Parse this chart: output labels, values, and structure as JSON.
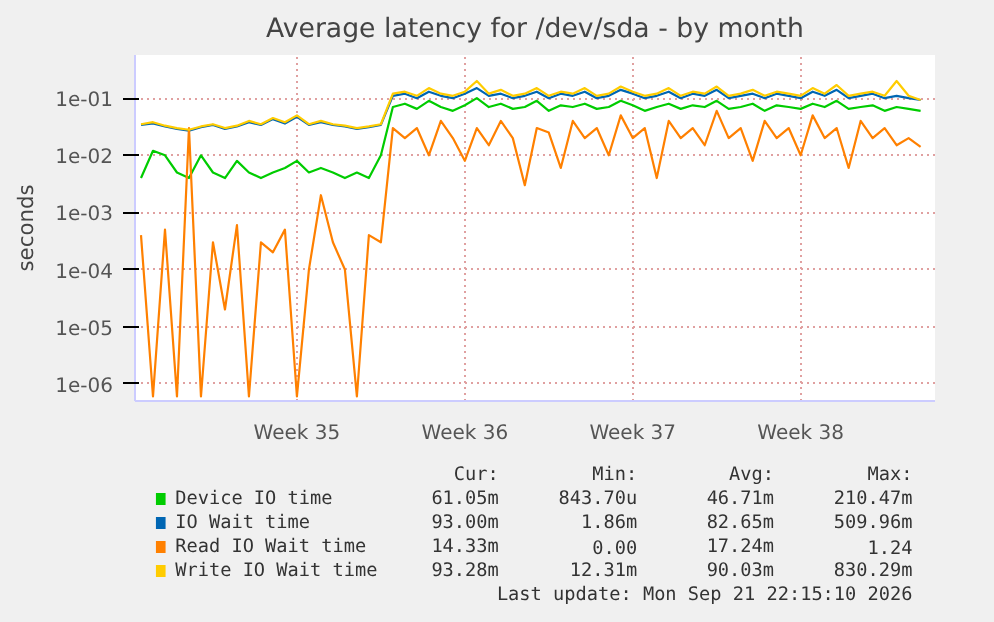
{
  "chart_data": {
    "type": "line",
    "title": "Average latency for /dev/sda - by month",
    "ylabel": "seconds",
    "log": true,
    "grid": true,
    "legend": "bottom",
    "categories": [
      null,
      null,
      null,
      null,
      null,
      null,
      null,
      null,
      null,
      null,
      null,
      null,
      null,
      "Week 35",
      null,
      null,
      null,
      null,
      null,
      null,
      null,
      null,
      null,
      null,
      null,
      null,
      null,
      "Week 36",
      null,
      null,
      null,
      null,
      null,
      null,
      null,
      null,
      null,
      null,
      null,
      null,
      null,
      "Week 37",
      null,
      null,
      null,
      null,
      null,
      null,
      null,
      null,
      null,
      null,
      null,
      null,
      null,
      "Week 38",
      null,
      null,
      null,
      null,
      null,
      null,
      null,
      null,
      null,
      null
    ],
    "ylim": [
      5e-07,
      0.57
    ],
    "yticks": [
      {
        "value": 1e-06,
        "label": "1e-06"
      },
      {
        "value": 1e-05,
        "label": "1e-05"
      },
      {
        "value": 0.0001,
        "label": "1e-04"
      },
      {
        "value": 0.001,
        "label": "1e-03"
      },
      {
        "value": 0.01,
        "label": "1e-02"
      },
      {
        "value": 0.1,
        "label": "1e-01"
      }
    ],
    "series": [
      {
        "name": "Device IO time",
        "color": "#00cc00",
        "values": [
          0.004,
          0.012,
          0.01,
          0.005,
          0.004,
          0.01,
          0.005,
          0.004,
          0.008,
          0.005,
          0.004,
          0.005,
          0.006,
          0.008,
          0.005,
          0.006,
          0.005,
          0.004,
          0.005,
          0.004,
          0.01,
          0.07,
          0.08,
          0.065,
          0.09,
          0.07,
          0.06,
          0.075,
          0.1,
          0.07,
          0.08,
          0.065,
          0.07,
          0.09,
          0.06,
          0.075,
          0.07,
          0.08,
          0.065,
          0.07,
          0.09,
          0.075,
          0.06,
          0.07,
          0.08,
          0.065,
          0.075,
          0.07,
          0.09,
          0.065,
          0.07,
          0.08,
          0.06,
          0.075,
          0.07,
          0.065,
          0.08,
          0.07,
          0.09,
          0.065,
          0.07,
          0.075,
          0.06,
          0.07,
          0.065,
          0.06
        ]
      },
      {
        "name": "IO Wait time",
        "color": "#0066b3",
        "values": [
          0.034,
          0.036,
          0.032,
          0.029,
          0.027,
          0.031,
          0.034,
          0.029,
          0.032,
          0.038,
          0.034,
          0.043,
          0.036,
          0.047,
          0.034,
          0.038,
          0.034,
          0.032,
          0.029,
          0.031,
          0.034,
          0.11,
          0.12,
          0.1,
          0.13,
          0.11,
          0.1,
          0.12,
          0.15,
          0.11,
          0.12,
          0.1,
          0.11,
          0.13,
          0.1,
          0.12,
          0.11,
          0.13,
          0.1,
          0.11,
          0.14,
          0.12,
          0.1,
          0.11,
          0.13,
          0.1,
          0.12,
          0.11,
          0.14,
          0.1,
          0.11,
          0.12,
          0.1,
          0.12,
          0.11,
          0.1,
          0.13,
          0.11,
          0.14,
          0.1,
          0.11,
          0.12,
          0.1,
          0.11,
          0.1,
          0.093
        ]
      },
      {
        "name": "Read IO Wait time",
        "color": "#ff8000",
        "values": [
          0.0004,
          6e-07,
          0.0005,
          6e-07,
          0.03,
          6e-07,
          0.0003,
          2e-05,
          0.0006,
          6e-07,
          0.0003,
          0.0002,
          0.0005,
          6e-07,
          0.0001,
          0.002,
          0.0003,
          0.0001,
          6e-07,
          0.0004,
          0.0003,
          0.03,
          0.02,
          0.03,
          0.01,
          0.04,
          0.02,
          0.008,
          0.03,
          0.015,
          0.04,
          0.02,
          0.003,
          0.03,
          0.025,
          0.006,
          0.04,
          0.02,
          0.03,
          0.01,
          0.05,
          0.02,
          0.03,
          0.004,
          0.04,
          0.02,
          0.03,
          0.015,
          0.06,
          0.02,
          0.03,
          0.008,
          0.04,
          0.02,
          0.03,
          0.01,
          0.05,
          0.02,
          0.03,
          0.006,
          0.04,
          0.02,
          0.03,
          0.015,
          0.02,
          0.014
        ]
      },
      {
        "name": "Write IO Wait time",
        "color": "#ffcc00",
        "values": [
          0.035,
          0.038,
          0.033,
          0.03,
          0.028,
          0.032,
          0.035,
          0.03,
          0.033,
          0.04,
          0.035,
          0.045,
          0.038,
          0.05,
          0.035,
          0.04,
          0.035,
          0.033,
          0.03,
          0.032,
          0.035,
          0.12,
          0.13,
          0.11,
          0.15,
          0.12,
          0.11,
          0.13,
          0.2,
          0.12,
          0.14,
          0.11,
          0.12,
          0.15,
          0.11,
          0.13,
          0.12,
          0.15,
          0.11,
          0.12,
          0.16,
          0.13,
          0.11,
          0.12,
          0.15,
          0.11,
          0.13,
          0.12,
          0.16,
          0.11,
          0.12,
          0.14,
          0.11,
          0.13,
          0.12,
          0.11,
          0.15,
          0.12,
          0.17,
          0.11,
          0.12,
          0.13,
          0.11,
          0.2,
          0.11,
          0.093
        ]
      }
    ],
    "annotations": [
      "Cur:",
      "Min:",
      "Avg:",
      "Max:",
      "61.05m",
      "843.70u",
      "46.71m",
      "210.47m",
      "93.00m",
      "1.86m",
      "82.65m",
      "509.96m",
      "14.33m",
      "0.00",
      "17.24m",
      "1.24",
      "93.28m",
      "12.31m",
      "90.03m",
      "830.29m",
      "Last update: Mon Sep 21 22:15:10 2026"
    ]
  }
}
